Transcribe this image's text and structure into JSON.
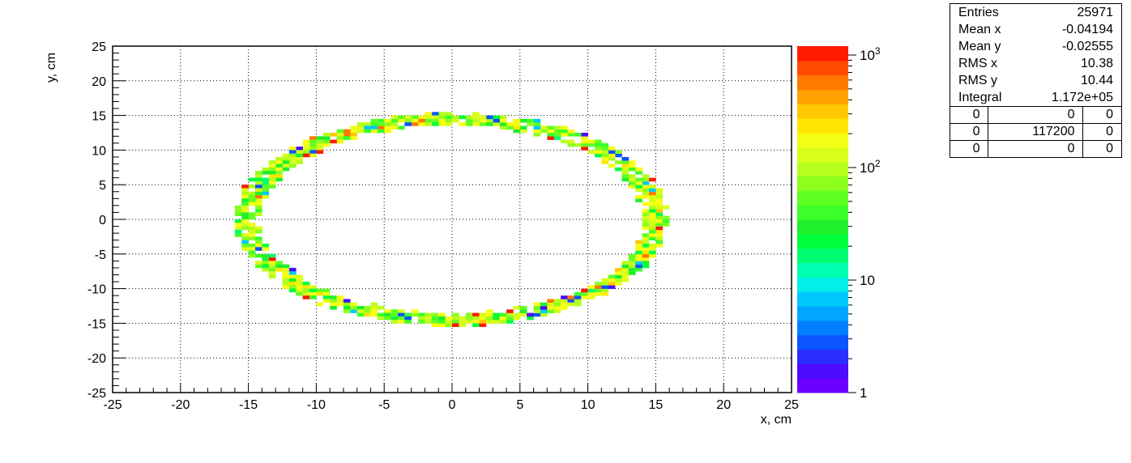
{
  "chart_data": {
    "type": "heatmap",
    "xlabel": "x, cm",
    "ylabel": "y, cm",
    "xlim": [
      -25,
      25
    ],
    "ylim": [
      -25,
      25
    ],
    "x_ticks": [
      "-25",
      "-20",
      "-15",
      "-10",
      "-5",
      "0",
      "5",
      "10",
      "15",
      "20",
      "25"
    ],
    "y_ticks": [
      "-25",
      "-20",
      "-15",
      "-10",
      "-5",
      "0",
      "5",
      "10",
      "15",
      "20",
      "25"
    ],
    "grid": true,
    "ring": {
      "center": [
        0,
        0
      ],
      "radius_x": 15,
      "radius_y": 14.5,
      "bin_size_cm": 0.5
    },
    "colorbar": {
      "scale": "log",
      "range": [
        1,
        1200
      ],
      "labels": [
        {
          "text": "1",
          "value": 1
        },
        {
          "text": "10",
          "value": 10
        },
        {
          "text": "10",
          "exp": "2",
          "value": 100
        },
        {
          "text": "10",
          "exp": "3",
          "value": 1000
        }
      ],
      "colors": [
        "#6a00ff",
        "#4b0bff",
        "#2b2dff",
        "#0a55ff",
        "#0080ff",
        "#00a6ff",
        "#00c8ff",
        "#00f0e8",
        "#00ffb0",
        "#00ff70",
        "#00ff3c",
        "#1ef02a",
        "#3cff2a",
        "#60ff22",
        "#8cff1e",
        "#b4ff1c",
        "#d8ff1a",
        "#f5ff14",
        "#ffe600",
        "#ffc800",
        "#ffa000",
        "#ff7800",
        "#ff4a00",
        "#ff1a00"
      ]
    }
  },
  "stats": {
    "rows": [
      {
        "label": "Entries",
        "value": "25971"
      },
      {
        "label": "Mean x",
        "value": "-0.04194"
      },
      {
        "label": "Mean y",
        "value": "-0.02555"
      },
      {
        "label": "RMS x",
        "value": "10.38"
      },
      {
        "label": "RMS y",
        "value": "10.44"
      },
      {
        "label": "Integral",
        "value": "1.172e+05"
      }
    ],
    "grid": [
      [
        "0",
        "0",
        "0"
      ],
      [
        "0",
        "117200",
        "0"
      ],
      [
        "0",
        "0",
        "0"
      ]
    ]
  }
}
